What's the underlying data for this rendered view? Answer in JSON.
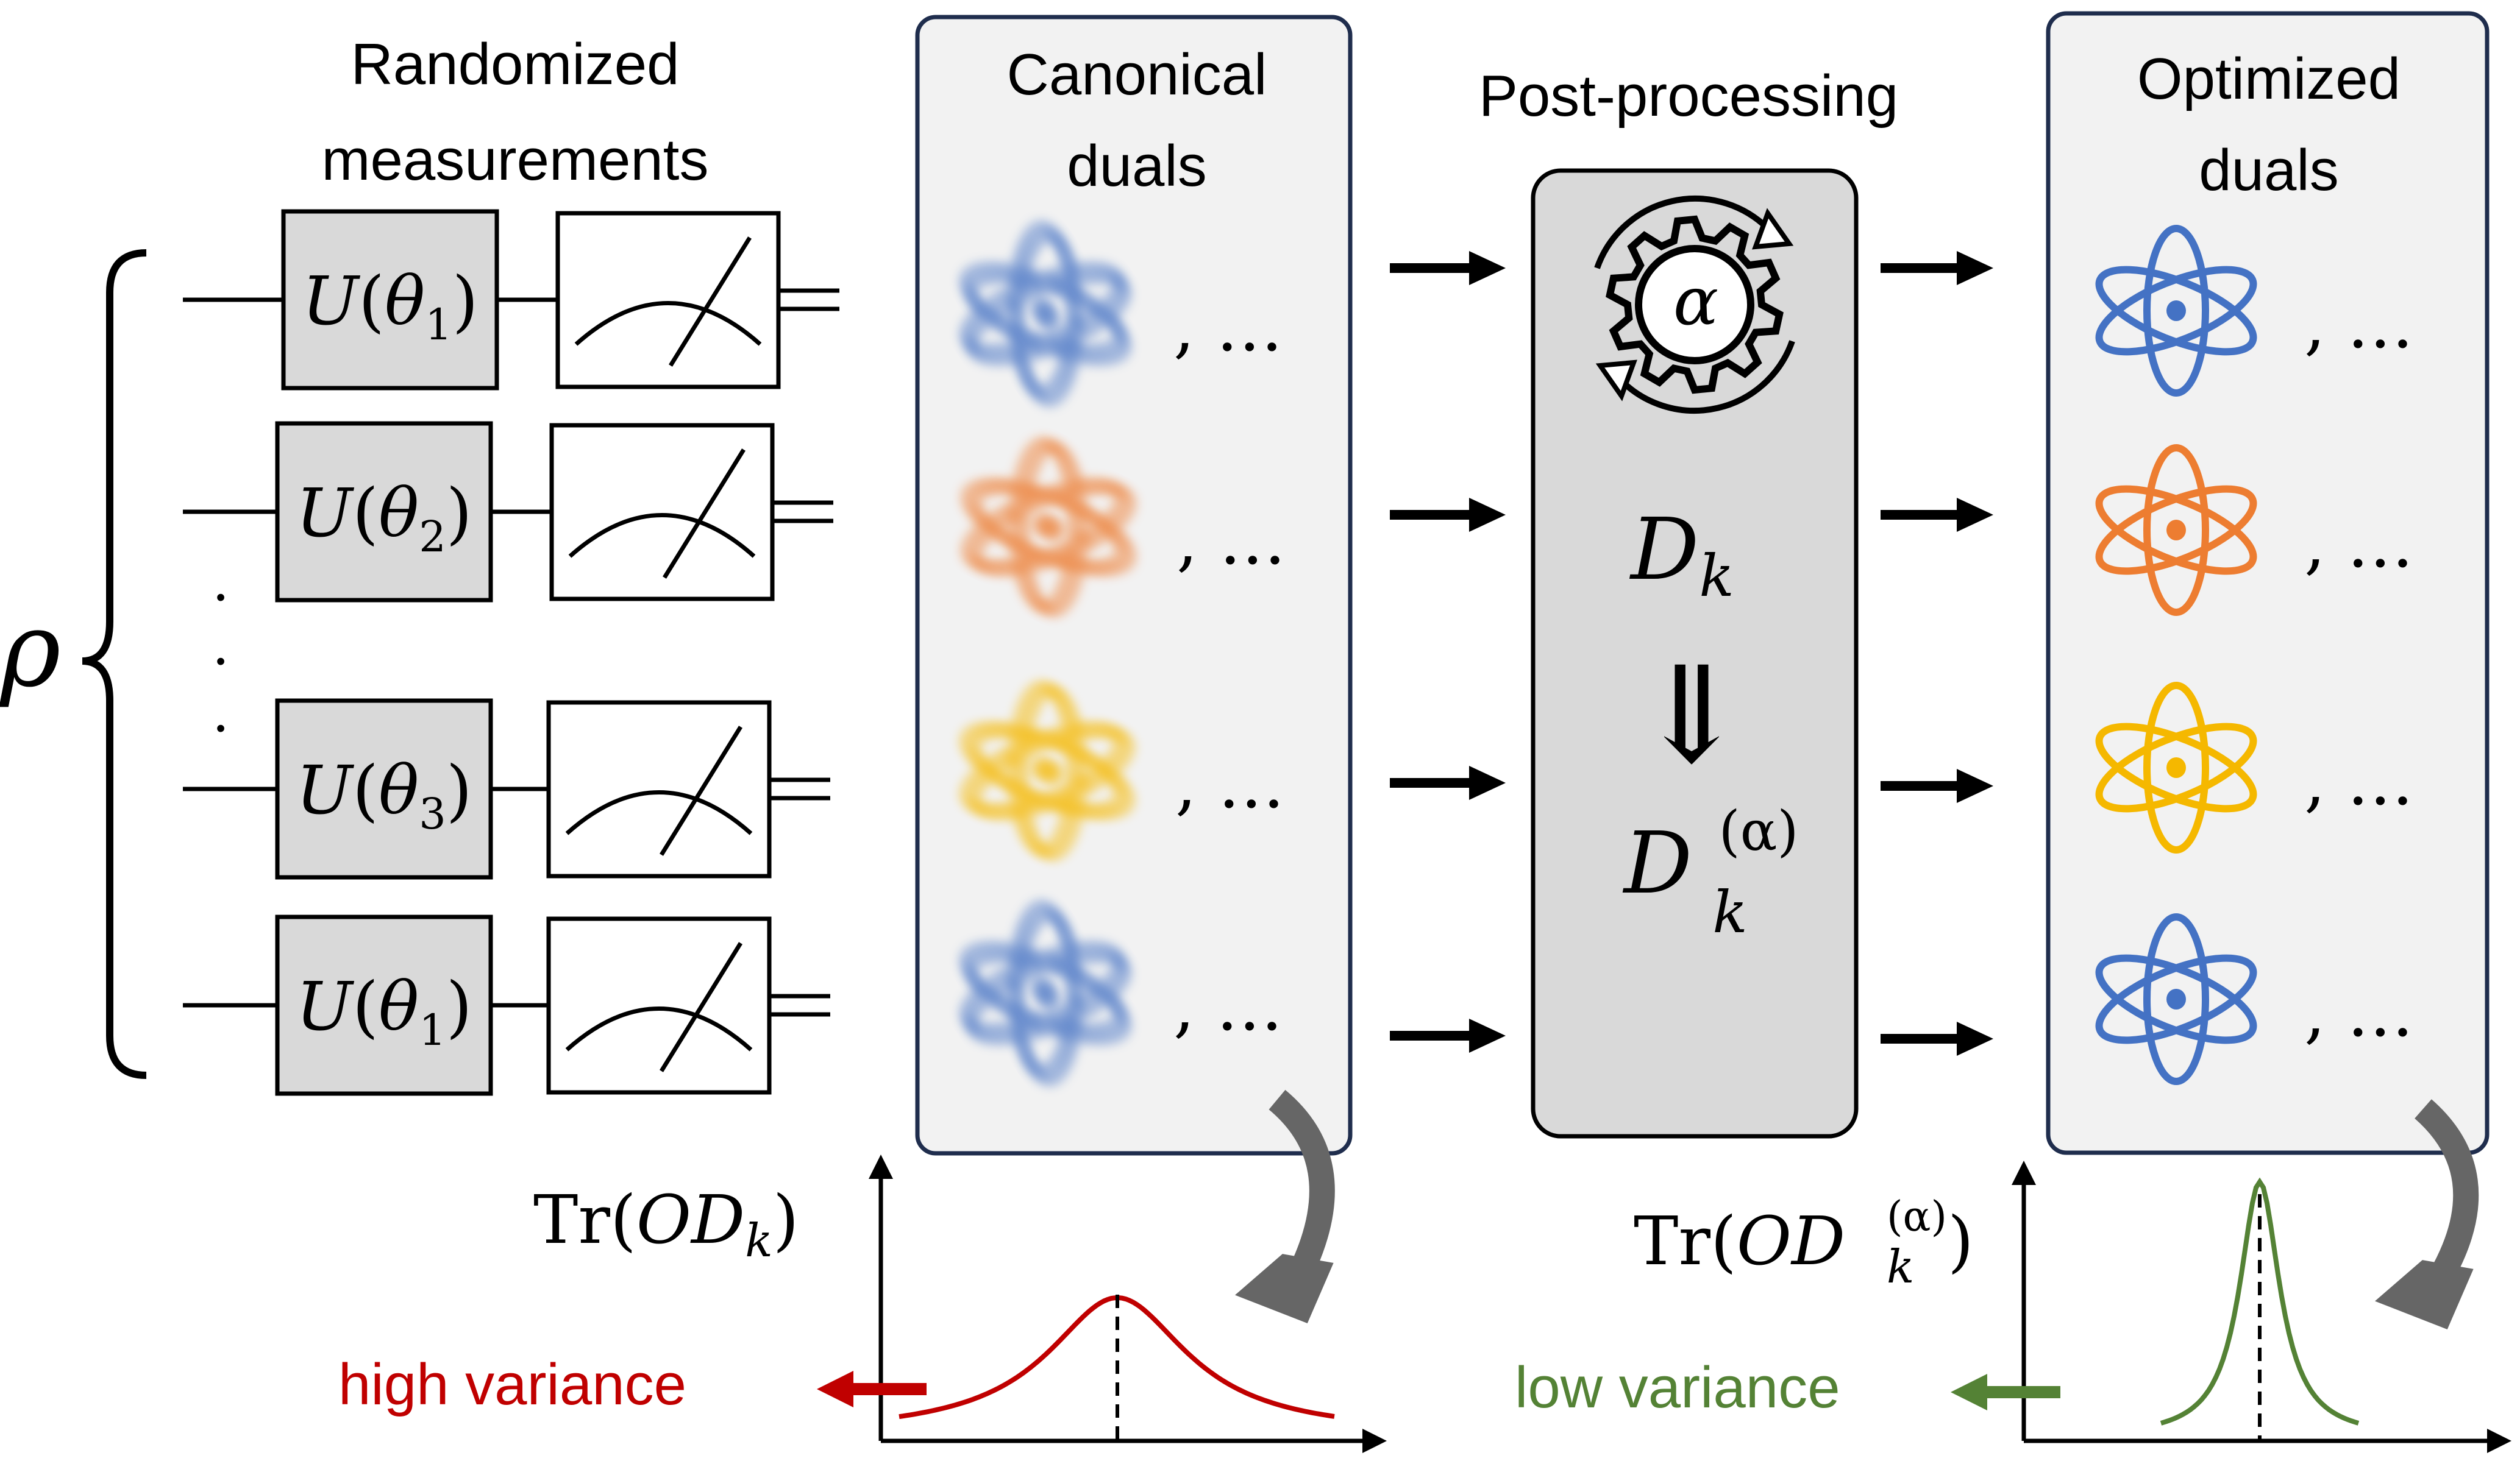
{
  "headings": {
    "randomized": [
      "Randomized",
      "measurements"
    ],
    "canonical": [
      "Canonical",
      "duals"
    ],
    "postprocessing": "Post-processing",
    "optimized": [
      "Optimized",
      "duals"
    ]
  },
  "state_symbol": "ρ",
  "circuit": {
    "gate_function": "U",
    "parameter": "θ",
    "rows": [
      {
        "subscript": "1"
      },
      {
        "subscript": "2"
      },
      {
        "subscript": "3"
      },
      {
        "subscript": "1"
      }
    ],
    "vertical_dots": ".",
    "measurement_icon": "meter-icon"
  },
  "duals": {
    "ellipsis": ", …",
    "colors": [
      "#4472c4",
      "#ed7d31",
      "#f5b800",
      "#4472c4"
    ],
    "icon": "atom-icon"
  },
  "postproc": {
    "gear_symbol": "α",
    "dk_base": "D",
    "dk_sub": "k",
    "implies": "⇓",
    "dka_sup": "(α)",
    "icon": "gear-cycle-icon"
  },
  "plots": {
    "left": {
      "label_prefix": "Tr(",
      "label_var": "OD",
      "label_sub": "k",
      "label_suffix": ")",
      "annotation": "high variance",
      "color": "#c00000"
    },
    "right": {
      "label_prefix": "Tr(",
      "label_var": "OD",
      "label_sub": "k",
      "label_sup": "(α)",
      "label_suffix": ")",
      "annotation": "low variance",
      "color": "#548235"
    }
  },
  "colors": {
    "panel_fill": "#f2f2f2",
    "panel_border": "#1f2d4d",
    "gate_fill": "#d9d9d9",
    "postproc_fill": "#d9d9d9",
    "curve_arrow": "#666666"
  }
}
